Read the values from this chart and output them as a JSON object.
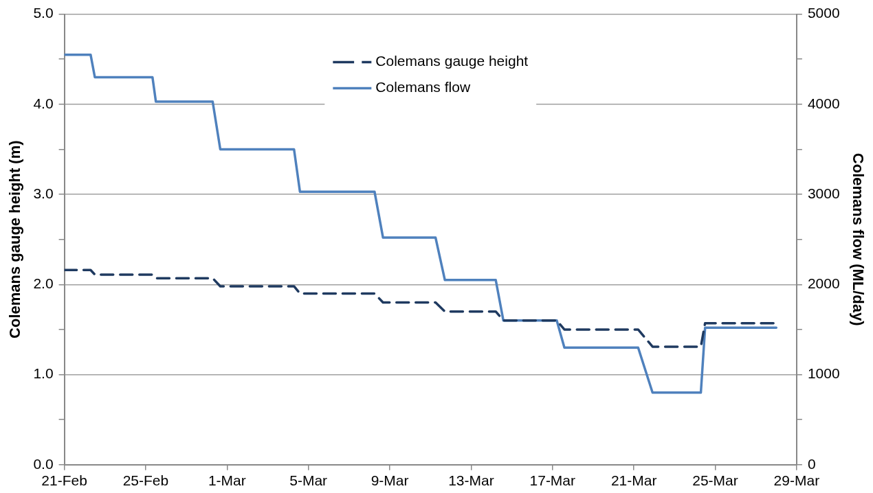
{
  "chart_data": {
    "type": "line",
    "ylabel": "Colemans gauge height (m)",
    "y2label": "Colemans flow (ML/day)",
    "xlim": [
      "--02-21",
      "--03-29"
    ],
    "xticks": [
      {
        "value": "--02-21",
        "label": "21-Feb"
      },
      {
        "value": "--02-25",
        "label": "25-Feb"
      },
      {
        "value": "--03-01",
        "label": "1-Mar"
      },
      {
        "value": "--03-05",
        "label": "5-Mar"
      },
      {
        "value": "--03-09",
        "label": "9-Mar"
      },
      {
        "value": "--03-13",
        "label": "13-Mar"
      },
      {
        "value": "--03-17",
        "label": "17-Mar"
      },
      {
        "value": "--03-21",
        "label": "21-Mar"
      },
      {
        "value": "--03-25",
        "label": "25-Mar"
      },
      {
        "value": "--03-29",
        "label": "29-Mar"
      }
    ],
    "ylim": [
      0,
      5
    ],
    "yticks": [
      {
        "value": 0,
        "label": "0.0"
      },
      {
        "value": 0.5,
        "label": null
      },
      {
        "value": 1,
        "label": "1.0"
      },
      {
        "value": 1.5,
        "label": null
      },
      {
        "value": 2,
        "label": "2.0"
      },
      {
        "value": 2.5,
        "label": null
      },
      {
        "value": 3,
        "label": "3.0"
      },
      {
        "value": 3.5,
        "label": null
      },
      {
        "value": 4,
        "label": "4.0"
      },
      {
        "value": 4.5,
        "label": null
      },
      {
        "value": 5,
        "label": "5.0"
      }
    ],
    "y2lim": [
      0,
      5000
    ],
    "y2ticks": [
      0,
      {
        "value": 500,
        "label": null
      },
      1000,
      {
        "value": 1500,
        "label": null
      },
      2000,
      {
        "value": 2500,
        "label": null
      },
      3000,
      {
        "value": 3500,
        "label": null
      },
      4000,
      {
        "value": 4500,
        "label": null
      },
      5000
    ],
    "grid": "y",
    "legend": "top",
    "marker": "none",
    "series": [
      {
        "name": "Colemans gauge height",
        "color": "#1f3a60",
        "line_style": "dashed",
        "x": [
          "--02-21T00:00",
          "--02-22T07:00",
          "--02-22T12:00",
          "--02-25T08:00",
          "--02-25T12:00",
          "--02-28T07:00",
          "--02-28T16:00",
          "--03-04T07:00",
          "--03-04T14:00",
          "--03-08T06:00",
          "--03-08T16:00",
          "--03-11T06:00",
          "--03-11T17:00",
          "--03-14T05:00",
          "--03-14T14:00",
          "--03-17T05:00",
          "--03-17T14:00",
          "--03-21T05:00",
          "--03-21T22:00",
          "--03-24T07:00",
          "--03-24T12:00",
          "--03-28T00:00"
        ],
        "values": [
          2.16,
          2.16,
          2.11,
          2.11,
          2.07,
          2.07,
          1.98,
          1.98,
          1.9,
          1.9,
          1.8,
          1.8,
          1.7,
          1.7,
          1.6,
          1.6,
          1.5,
          1.5,
          1.31,
          1.31,
          1.57,
          1.57
        ]
      },
      {
        "name": "Colemans flow",
        "color": "#4f81bd",
        "line_style": "solid",
        "axis": "y2",
        "x": [
          "--02-21T00:00",
          "--02-22T07:00",
          "--02-22T12:00",
          "--02-25T08:00",
          "--02-25T12:00",
          "--02-28T07:00",
          "--02-28T16:00",
          "--03-04T07:00",
          "--03-04T14:00",
          "--03-08T06:00",
          "--03-08T16:00",
          "--03-11T06:00",
          "--03-11T17:00",
          "--03-14T05:00",
          "--03-14T14:00",
          "--03-17T05:00",
          "--03-17T14:00",
          "--03-21T05:00",
          "--03-21T22:00",
          "--03-24T07:00",
          "--03-24T12:00",
          "--03-28T00:00"
        ],
        "values": [
          4550,
          4550,
          4300,
          4300,
          4030,
          4030,
          3500,
          3500,
          3030,
          3030,
          2520,
          2520,
          2050,
          2050,
          1600,
          1600,
          1300,
          1300,
          800,
          800,
          1520,
          1520
        ]
      }
    ]
  }
}
